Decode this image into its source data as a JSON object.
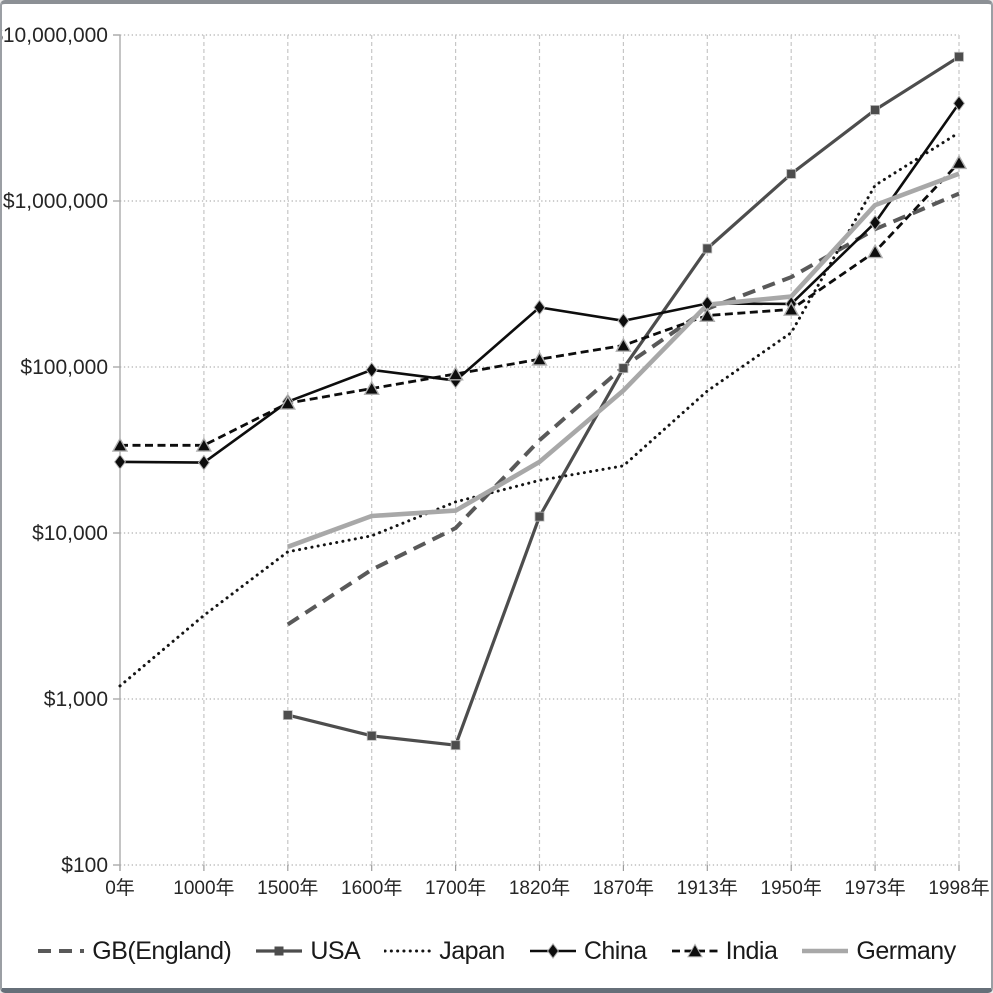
{
  "chart_data": {
    "type": "line",
    "title": "",
    "xlabel": "",
    "ylabel": "",
    "x_axis": {
      "categories": [
        "0年",
        "1000年",
        "1500年",
        "1600年",
        "1700年",
        "1820年",
        "1870年",
        "1913年",
        "1950年",
        "1973年",
        "1998年"
      ]
    },
    "y_axis": {
      "scale": "log",
      "ylim": [
        100,
        10000000
      ],
      "ticks": [
        {
          "value": 10000000,
          "label": "$10,000,000"
        },
        {
          "value": 1000000,
          "label": "$1,000,000"
        },
        {
          "value": 100000,
          "label": "$100,000"
        },
        {
          "value": 10000,
          "label": "$10,000"
        },
        {
          "value": 1000,
          "label": "$1,000"
        },
        {
          "value": 100,
          "label": "$100"
        }
      ]
    },
    "grid": {
      "horizontal": true,
      "vertical": true
    },
    "legend": {
      "position": "bottom"
    },
    "series": [
      {
        "name": "GB(England)",
        "color": "#595959",
        "line_style": "dashed-long",
        "marker": "none",
        "line_width": 4,
        "values": [
          null,
          null,
          2815,
          6007,
          10709,
          36232,
          100179,
          224618,
          347850,
          675941,
          1108568
        ]
      },
      {
        "name": "USA",
        "color": "#4d4d4d",
        "line_style": "solid",
        "marker": "square",
        "line_width": 3.2,
        "values": [
          null,
          null,
          800,
          600,
          527,
          12548,
          98374,
          517383,
          1455916,
          3536622,
          7394598
        ]
      },
      {
        "name": "Japan",
        "color": "#141414",
        "line_style": "dotted",
        "marker": "none",
        "line_width": 3,
        "values": [
          1200,
          3188,
          7700,
          9620,
          15390,
          20739,
          25393,
          71653,
          160966,
          1242932,
          2581576
        ]
      },
      {
        "name": "China",
        "color": "#0d0d0d",
        "line_style": "solid",
        "marker": "diamond",
        "line_width": 2.6,
        "values": [
          26820,
          26550,
          61800,
          96000,
          82800,
          228600,
          189740,
          241344,
          239903,
          740048,
          3873352
        ]
      },
      {
        "name": "India",
        "color": "#0d0d0d",
        "line_style": "dashed-short",
        "marker": "triangle",
        "line_width": 2.8,
        "values": [
          33750,
          33750,
          60500,
          74250,
          90750,
          111417,
          134882,
          204242,
          222222,
          494832,
          1702712
        ]
      },
      {
        "name": "Germany",
        "color": "#a8a8a8",
        "line_style": "solid",
        "marker": "none",
        "line_width": 4.6,
        "values": [
          null,
          null,
          8256,
          12656,
          13650,
          26819,
          72149,
          237332,
          265354,
          944755,
          1460069
        ]
      }
    ]
  }
}
